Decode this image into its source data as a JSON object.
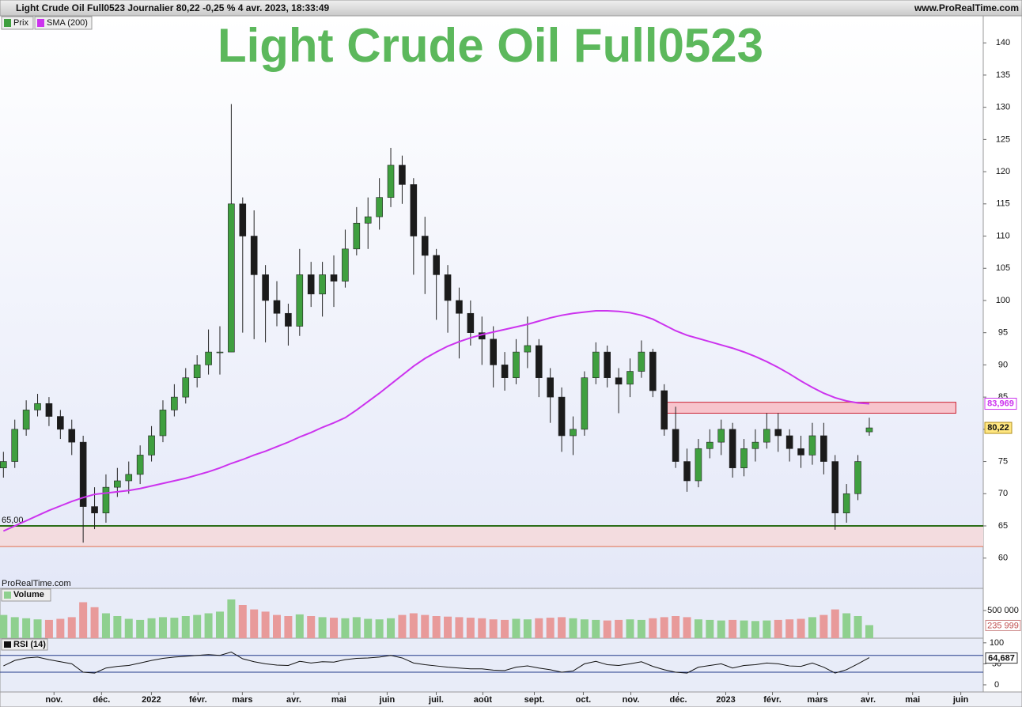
{
  "chart_data": [
    {
      "type": "candlestick",
      "header": "Light Crude Oil Full0523 Journalier 80,22 -0,25 % 4 avr. 2023, 18:33:49",
      "source": "www.ProRealTime.com",
      "watermark": "ProRealTime.com",
      "title": "Light Crude Oil Full0523",
      "title_color": "#5cb85c",
      "xlim": [
        -0.3,
        86
      ],
      "xticks": [
        {
          "value": 4.44,
          "label": "nov."
        },
        {
          "value": 8.61,
          "label": "déc."
        },
        {
          "value": 12.99,
          "label": "2022"
        },
        {
          "value": 17.08,
          "label": "févr."
        },
        {
          "value": 20.97,
          "label": "mars"
        },
        {
          "value": 25.49,
          "label": "avr."
        },
        {
          "value": 29.44,
          "label": "mai"
        },
        {
          "value": 33.68,
          "label": "juin"
        },
        {
          "value": 37.99,
          "label": "juil."
        },
        {
          "value": 42.08,
          "label": "août"
        },
        {
          "value": 46.6,
          "label": "sept."
        },
        {
          "value": 50.9,
          "label": "oct."
        },
        {
          "value": 55.07,
          "label": "nov."
        },
        {
          "value": 59.24,
          "label": "déc."
        },
        {
          "value": 63.4,
          "label": "2023"
        },
        {
          "value": 67.5,
          "label": "févr."
        },
        {
          "value": 71.46,
          "label": "mars"
        },
        {
          "value": 75.9,
          "label": "avr."
        },
        {
          "value": 79.8,
          "label": "mai"
        },
        {
          "value": 84.03,
          "label": "juin"
        }
      ],
      "ylim": [
        55.3,
        144.2
      ],
      "yticks": [
        60,
        65,
        70,
        75,
        80,
        85,
        90,
        95,
        100,
        105,
        110,
        115,
        120,
        125,
        130,
        135,
        140
      ],
      "candles": {
        "name": "Prix",
        "up_color": "#3f9f3f",
        "down_color": "#1b1b1b",
        "open": [
          74,
          75,
          80,
          83,
          84,
          82,
          80,
          78,
          68,
          67,
          71,
          72,
          73,
          76,
          79,
          83,
          85,
          88,
          90,
          92,
          92,
          115,
          110,
          104,
          100,
          98,
          96,
          104,
          101,
          104,
          103,
          108,
          112,
          113,
          116,
          121,
          118,
          110,
          107,
          104,
          100,
          98,
          95,
          94,
          90,
          88,
          92,
          93,
          88,
          85,
          79,
          80,
          88,
          92,
          88,
          87,
          89,
          92,
          86,
          80,
          75,
          72,
          77,
          78,
          80,
          74,
          77,
          78,
          80,
          79,
          77,
          76,
          79,
          75,
          67,
          70,
          79.6
        ],
        "high": [
          76.5,
          81.5,
          84.5,
          85.5,
          85,
          83,
          81.5,
          79,
          71,
          73,
          74,
          75,
          77.5,
          80.5,
          84.5,
          87,
          89.5,
          91.5,
          95.5,
          96,
          130.5,
          116,
          114,
          105.5,
          103,
          99.5,
          108,
          106,
          106,
          107,
          111,
          114.5,
          116,
          119,
          123.7,
          122.5,
          119,
          113,
          108,
          105.5,
          102,
          100,
          97.5,
          96,
          92,
          94,
          97.5,
          94,
          89.5,
          86.5,
          82,
          89,
          93.5,
          93,
          89.5,
          91,
          93.8,
          92.5,
          87,
          83.5,
          77,
          78.5,
          80,
          81.5,
          81,
          78.5,
          80,
          82.5,
          82.5,
          80,
          79,
          81,
          81,
          76,
          71.5,
          76,
          81.8
        ],
        "low": [
          72.5,
          74,
          79,
          82,
          80.5,
          78.5,
          76,
          62.4,
          64.5,
          65.5,
          69.5,
          70,
          71.5,
          75,
          78,
          82,
          84,
          86.5,
          88.5,
          88.5,
          92,
          95,
          94,
          93.5,
          96,
          93,
          94.5,
          99,
          97.5,
          99,
          102,
          107,
          108,
          111,
          114.5,
          115,
          104,
          101,
          97,
          95,
          91,
          93,
          90,
          86.5,
          86,
          87,
          89.5,
          85,
          81,
          76.5,
          76,
          79,
          87,
          86.5,
          82.5,
          85,
          88,
          85,
          79,
          74,
          70.3,
          71,
          75.5,
          76,
          72.5,
          72.7,
          75,
          77,
          76.5,
          75,
          74,
          74.5,
          73,
          64.4,
          65.5,
          69,
          79
        ],
        "close": [
          75,
          80,
          83,
          84,
          82,
          80,
          78,
          68,
          67,
          71,
          72,
          73,
          76,
          79,
          83,
          85,
          88,
          90,
          92,
          92,
          115,
          110,
          104,
          100,
          98,
          96,
          104,
          101,
          104,
          103,
          108,
          112,
          113,
          116,
          121,
          118,
          110,
          107,
          104,
          100,
          98,
          95,
          94,
          90,
          88,
          92,
          93,
          88,
          85,
          79,
          80,
          88,
          92,
          88,
          87,
          89,
          92,
          86,
          80,
          75,
          72,
          77,
          78,
          80,
          74,
          77,
          78,
          80,
          79,
          77,
          76,
          79,
          75,
          67,
          70,
          75,
          80.22
        ],
        "last": {
          "value": 80.22,
          "label": "80,22"
        }
      },
      "sma": {
        "name": "SMA (200)",
        "color": "#cc33ee",
        "values": [
          64.2,
          65,
          65.8,
          66.6,
          67.4,
          68.1,
          68.8,
          69.4,
          69.9,
          70.1,
          70.3,
          70.5,
          70.8,
          71.2,
          71.6,
          72,
          72.4,
          72.9,
          73.4,
          74,
          74.7,
          75.3,
          76,
          76.6,
          77.3,
          78,
          78.8,
          79.5,
          80.3,
          81,
          81.8,
          83,
          84.3,
          85.6,
          87,
          88.4,
          89.8,
          91,
          92,
          92.9,
          93.6,
          94.2,
          94.7,
          95.1,
          95.5,
          95.9,
          96.3,
          96.8,
          97.3,
          97.7,
          98,
          98.2,
          98.4,
          98.4,
          98.3,
          98.1,
          97.7,
          97.1,
          96.2,
          95.3,
          94.6,
          94.1,
          93.6,
          93.1,
          92.6,
          92,
          91.3,
          90.5,
          89.6,
          88.6,
          87.5,
          86.5,
          85.6,
          84.9,
          84.4,
          84.1,
          83.969
        ],
        "last": {
          "value": 83.969,
          "label": "83,969"
        }
      },
      "support": {
        "value": 65,
        "label": "65,00",
        "color": "#2c6e1a"
      },
      "support_zone": {
        "y": [
          61.8,
          65
        ],
        "color": "#f3dcdf",
        "edge": "#e07050"
      },
      "resistance_zone": {
        "x": [
          57.8,
          83.6
        ],
        "y": [
          82.5,
          84.2
        ],
        "color": "#f7c4cc",
        "edge": "#cc2233"
      }
    },
    {
      "type": "bar",
      "name": "Volume",
      "ylim": [
        0,
        900000
      ],
      "yticks": [
        {
          "value": 500000,
          "label": "500 000"
        }
      ],
      "values": [
        420000,
        380000,
        360000,
        340000,
        330000,
        350000,
        380000,
        650000,
        560000,
        450000,
        400000,
        350000,
        330000,
        360000,
        380000,
        370000,
        400000,
        420000,
        450000,
        480000,
        700000,
        600000,
        520000,
        480000,
        420000,
        400000,
        430000,
        400000,
        380000,
        370000,
        360000,
        380000,
        350000,
        340000,
        360000,
        420000,
        450000,
        420000,
        400000,
        390000,
        380000,
        370000,
        360000,
        340000,
        330000,
        350000,
        340000,
        360000,
        370000,
        380000,
        360000,
        340000,
        330000,
        320000,
        330000,
        340000,
        330000,
        360000,
        380000,
        400000,
        380000,
        340000,
        330000,
        320000,
        330000,
        320000,
        310000,
        320000,
        330000,
        340000,
        350000,
        380000,
        420000,
        520000,
        450000,
        400000,
        235999
      ],
      "last": {
        "value": 235999,
        "label": "235 999"
      },
      "up_color": "#8fd08f",
      "down_color": "#e89a9a"
    },
    {
      "type": "line",
      "name": "RSI (14)",
      "color": "#111111",
      "ylim": [
        -17,
        111
      ],
      "yticks": [
        0,
        50,
        100
      ],
      "levels": [
        30,
        70
      ],
      "values": [
        45,
        58,
        64,
        66,
        60,
        55,
        50,
        30,
        28,
        40,
        44,
        46,
        52,
        58,
        63,
        66,
        68,
        70,
        72,
        70,
        78,
        62,
        55,
        50,
        47,
        46,
        56,
        52,
        55,
        54,
        60,
        63,
        64,
        66,
        70,
        64,
        52,
        48,
        45,
        42,
        40,
        38,
        38,
        35,
        34,
        42,
        45,
        40,
        36,
        30,
        33,
        50,
        56,
        48,
        46,
        50,
        55,
        44,
        36,
        30,
        28,
        42,
        46,
        50,
        40,
        46,
        48,
        52,
        50,
        45,
        44,
        52,
        42,
        28,
        36,
        50,
        64.687
      ],
      "last": {
        "value": 64.687,
        "label": "64,687"
      }
    }
  ]
}
